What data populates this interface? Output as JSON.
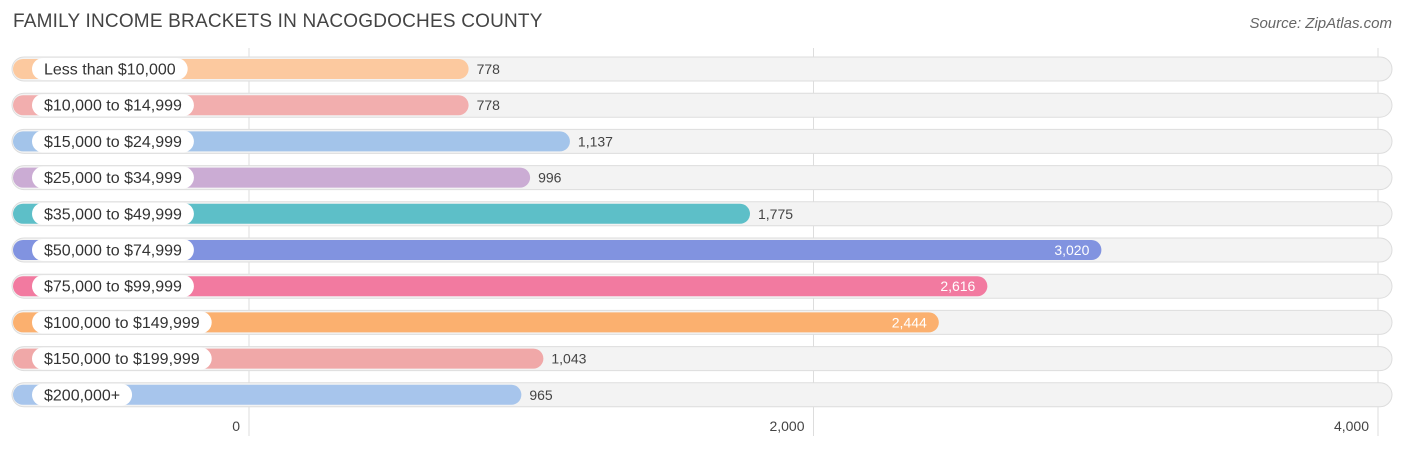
{
  "header": {
    "title": "FAMILY INCOME BRACKETS IN NACOGDOCHES COUNTY",
    "source": "Source: ZipAtlas.com"
  },
  "chart_data": {
    "type": "bar",
    "orientation": "horizontal",
    "title": "FAMILY INCOME BRACKETS IN NACOGDOCHES COUNTY",
    "xlabel": "",
    "ylabel": "",
    "categories": [
      "Less than $10,000",
      "$10,000 to $14,999",
      "$15,000 to $24,999",
      "$25,000 to $34,999",
      "$35,000 to $49,999",
      "$50,000 to $74,999",
      "$75,000 to $99,999",
      "$100,000 to $149,999",
      "$150,000 to $199,999",
      "$200,000+"
    ],
    "values": [
      778,
      778,
      1137,
      996,
      1775,
      3020,
      2616,
      2444,
      1043,
      965
    ],
    "value_labels": [
      "778",
      "778",
      "1,137",
      "996",
      "1,775",
      "3,020",
      "2,616",
      "2,444",
      "1,043",
      "965"
    ],
    "colors": [
      "#fcc99f",
      "#f2aeae",
      "#a3c4ea",
      "#cbacd4",
      "#5dbfc8",
      "#8193e0",
      "#f27aa0",
      "#fbb06f",
      "#f0a8a8",
      "#a7c5ec"
    ],
    "xlim": [
      0,
      4000
    ],
    "xticks": [
      0,
      2000,
      4000
    ],
    "xtick_labels": [
      "0",
      "2,000",
      "4,000"
    ],
    "grid": true,
    "legend": "none"
  }
}
